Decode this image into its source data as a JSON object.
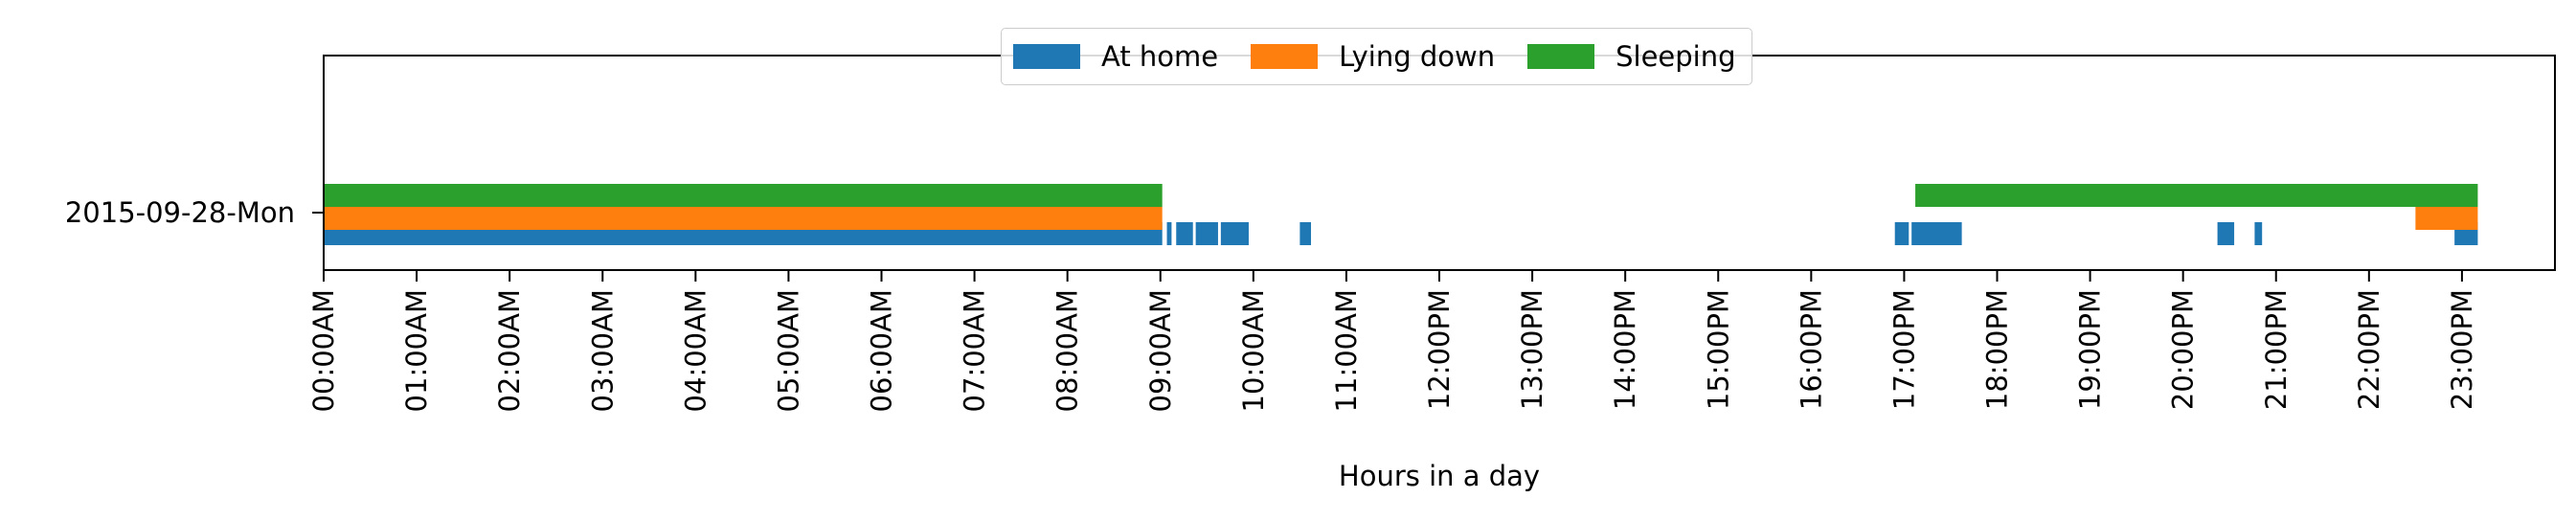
{
  "chart_data": {
    "type": "bar",
    "title": "",
    "xlabel": "Hours in a day",
    "ylabel": "",
    "xlim": [
      0,
      24
    ],
    "x_ticks": [
      "00:00AM",
      "01:00AM",
      "02:00AM",
      "03:00AM",
      "04:00AM",
      "05:00AM",
      "06:00AM",
      "07:00AM",
      "08:00AM",
      "09:00AM",
      "10:00AM",
      "11:00AM",
      "12:00PM",
      "13:00PM",
      "14:00PM",
      "15:00PM",
      "16:00PM",
      "17:00PM",
      "18:00PM",
      "19:00PM",
      "20:00PM",
      "21:00PM",
      "22:00PM",
      "23:00PM"
    ],
    "categories": [
      "2015-09-28-Mon"
    ],
    "grid": false,
    "legend_position": "top-center",
    "series": [
      {
        "name": "At home",
        "color": "#1f77b4",
        "intervals": [
          [
            0.0,
            9.02
          ],
          [
            9.07,
            9.12
          ],
          [
            9.17,
            9.35
          ],
          [
            9.38,
            9.62
          ],
          [
            9.65,
            9.95
          ],
          [
            10.5,
            10.62
          ],
          [
            16.9,
            17.05
          ],
          [
            17.08,
            17.62
          ],
          [
            20.37,
            20.55
          ],
          [
            20.77,
            20.85
          ],
          [
            22.92,
            23.17
          ]
        ]
      },
      {
        "name": "Lying down",
        "color": "#ff7f0e",
        "intervals": [
          [
            0.0,
            9.02
          ],
          [
            22.5,
            23.17
          ]
        ]
      },
      {
        "name": "Sleeping",
        "color": "#2ca02c",
        "intervals": [
          [
            0.0,
            9.02
          ],
          [
            17.12,
            23.17
          ]
        ]
      }
    ]
  }
}
